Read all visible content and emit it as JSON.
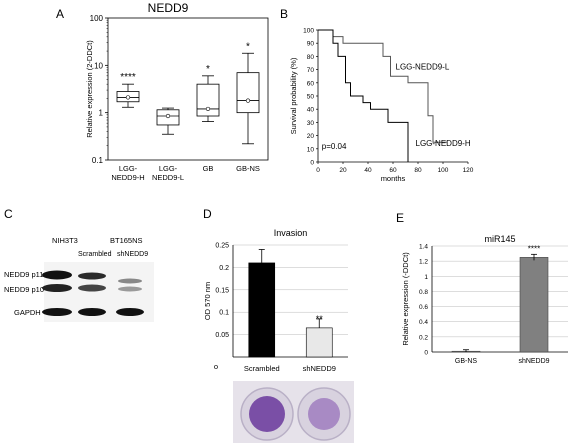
{
  "panels": {
    "a": {
      "letter": "A",
      "title": "NEDD9"
    },
    "b": {
      "letter": "B"
    },
    "c": {
      "letter": "C"
    },
    "d": {
      "letter": "D"
    },
    "e": {
      "letter": "E"
    }
  },
  "chart_data": [
    {
      "id": "A",
      "type": "box",
      "title": "NEDD9",
      "ylabel": "Relative expression (2-DDCt)",
      "yscale": "log",
      "ylim": [
        0.1,
        100
      ],
      "yticks": [
        "0.1",
        "1",
        "10",
        "100"
      ],
      "categories": [
        "LGG-\nNEDD9-H",
        "LGG-\nNEDD9-L",
        "GB",
        "GB-NS"
      ],
      "boxes": [
        {
          "whisker_low": 1.3,
          "q1": 1.7,
          "median": 2.1,
          "q3": 2.8,
          "whisker_high": 4.0,
          "mean": 2.1
        },
        {
          "whisker_low": 0.35,
          "q1": 0.55,
          "median": 0.85,
          "q3": 1.15,
          "whisker_high": 1.25,
          "mean": 0.85
        },
        {
          "whisker_low": 0.65,
          "q1": 0.85,
          "median": 1.2,
          "q3": 4.0,
          "whisker_high": 6.0,
          "mean": 1.2
        },
        {
          "whisker_low": 0.22,
          "q1": 1.0,
          "median": 1.8,
          "q3": 7.0,
          "whisker_high": 18.0,
          "mean": 1.8
        }
      ],
      "annotations": [
        "****",
        "",
        "*",
        "*"
      ]
    },
    {
      "id": "B",
      "type": "line",
      "ylabel": "Survival probability (%)",
      "xlabel": "months",
      "xlim": [
        0,
        120
      ],
      "ylim": [
        0,
        100
      ],
      "xticks": [
        "0",
        "20",
        "40",
        "60",
        "80",
        "100",
        "120"
      ],
      "yticks": [
        "0",
        "10",
        "20",
        "30",
        "40",
        "50",
        "60",
        "70",
        "80",
        "90",
        "100"
      ],
      "series": [
        {
          "name": "LGG-NEDD9-L",
          "x": [
            0,
            12,
            12,
            20,
            20,
            52,
            52,
            58,
            58,
            72,
            72,
            88,
            88,
            92,
            92,
            103
          ],
          "y": [
            100,
            100,
            95,
            95,
            90,
            90,
            80,
            80,
            65,
            65,
            60,
            60,
            35,
            35,
            15,
            15
          ]
        },
        {
          "name": "LGG-NEDD9-H",
          "x": [
            0,
            12,
            12,
            16,
            16,
            22,
            22,
            26,
            26,
            36,
            36,
            42,
            42,
            56,
            56,
            72,
            72
          ],
          "y": [
            100,
            100,
            90,
            90,
            80,
            80,
            60,
            60,
            50,
            50,
            45,
            45,
            40,
            40,
            30,
            30,
            0
          ]
        }
      ],
      "annotations": [
        "p=0.04"
      ]
    },
    {
      "id": "D",
      "type": "bar",
      "title": "Invasion",
      "ylabel": "OD 570 nm",
      "ylim": [
        0,
        0.25
      ],
      "yticks": [
        "0",
        "0.05",
        "0.1",
        "0.15",
        "0.2",
        "0.25"
      ],
      "zero_label": "o",
      "categories": [
        "Scrambled",
        "shNEDD9"
      ],
      "values": [
        0.21,
        0.065
      ],
      "errors": [
        0.03,
        0.02
      ],
      "colors": [
        "#000000",
        "#e8e8e8"
      ],
      "annotations": [
        "",
        "**"
      ]
    },
    {
      "id": "E",
      "type": "bar",
      "title": "miR145",
      "ylabel": "Relative expression (-DDCt)",
      "ylim": [
        0,
        1.4
      ],
      "yticks": [
        "0",
        "0.2",
        "0.4",
        "0.6",
        "0.8",
        "1",
        "1.2",
        "1.4"
      ],
      "categories": [
        "GB-NS",
        "shNEDD9"
      ],
      "values": [
        0.01,
        1.25
      ],
      "errors": [
        0.02,
        0.04
      ],
      "colors": [
        "#808080",
        "#808080"
      ],
      "annotations": [
        "",
        "****"
      ]
    }
  ],
  "blot": {
    "col_labels": [
      "NIH3T3",
      "BT165NS"
    ],
    "lane_labels": [
      "Scrambled",
      "shNEDD9"
    ],
    "row_labels": [
      "NEDD9 p115",
      "NEDD9 p105",
      "GAPDH"
    ]
  }
}
